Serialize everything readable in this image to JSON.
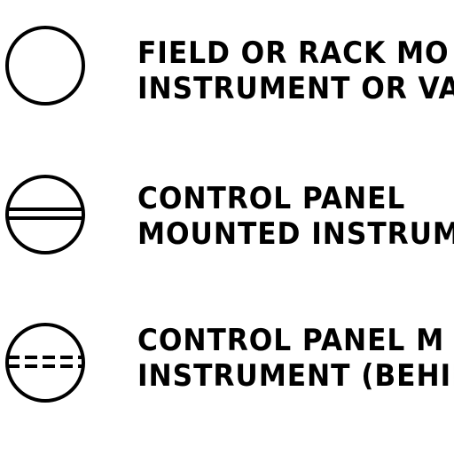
{
  "legend": {
    "items": [
      {
        "line1": "FIELD OR RACK MO",
        "line2": "INSTRUMENT OR VA"
      },
      {
        "line1": "CONTROL PANEL",
        "line2": "MOUNTED INSTRUM"
      },
      {
        "line1": "CONTROL PANEL M",
        "line2": "INSTRUMENT (BEHIN"
      }
    ]
  },
  "colors": {
    "line": "#000000",
    "background": "#ffffff"
  }
}
